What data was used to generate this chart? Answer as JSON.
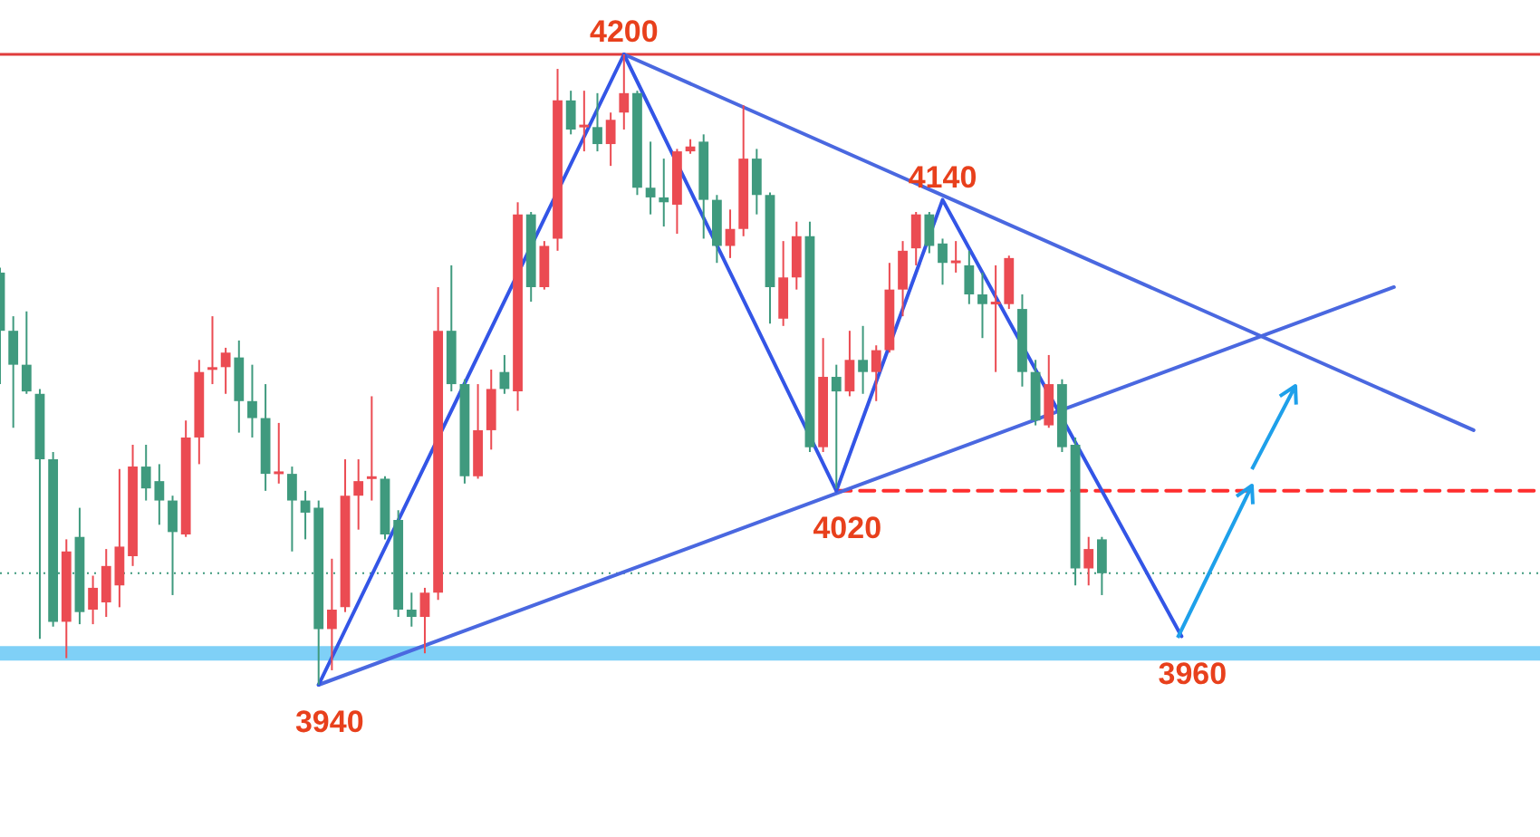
{
  "chart_data": {
    "type": "candlestick",
    "tick_labels": false,
    "categories": [
      null,
      null,
      null,
      null,
      null,
      null,
      null,
      null,
      null,
      null,
      null,
      null,
      null,
      null,
      null,
      null,
      null,
      null,
      null,
      null,
      null,
      null,
      null,
      null,
      null,
      null,
      null,
      null,
      null,
      null,
      null,
      null,
      null,
      null,
      null,
      null,
      null,
      null,
      null,
      null,
      null,
      null,
      null,
      null,
      null,
      null,
      null,
      null,
      null,
      null,
      null,
      null,
      null,
      null,
      null,
      null,
      null,
      null,
      null,
      null,
      null,
      null,
      null,
      null,
      null,
      null,
      null,
      null,
      null,
      null,
      null,
      null,
      null,
      null,
      null,
      null,
      null,
      null,
      null,
      null,
      null,
      null,
      null,
      null,
      null,
      null,
      null,
      null,
      null,
      null,
      null,
      null,
      null,
      null,
      null,
      null,
      null,
      null,
      null,
      null,
      null,
      null,
      null,
      null,
      null,
      null,
      null,
      null,
      null,
      null,
      null,
      null,
      null,
      null,
      null,
      null,
      null
    ],
    "ohlc": [
      [
        4110,
        4112,
        4064,
        4086
      ],
      [
        4086,
        4092,
        4046,
        4072
      ],
      [
        4072,
        4094,
        4060,
        4061
      ],
      [
        4060,
        4062,
        3959,
        4033
      ],
      [
        4033,
        4036,
        3964,
        3966
      ],
      [
        3966,
        4000,
        3951,
        3995
      ],
      [
        4001,
        4013,
        3965,
        3970
      ],
      [
        3971,
        3985,
        3965,
        3980
      ],
      [
        3974,
        3996,
        3968,
        3989
      ],
      [
        3981,
        4029,
        3972,
        3997
      ],
      [
        3993,
        4039,
        3989,
        4030
      ],
      [
        4030,
        4039,
        4016,
        4021
      ],
      [
        4024,
        4031,
        4006,
        4016
      ],
      [
        4016,
        4018,
        3977,
        4003
      ],
      [
        4002,
        4049,
        4001,
        4042
      ],
      [
        4042,
        4074,
        4031,
        4069
      ],
      [
        4070,
        4092,
        4064,
        4071
      ],
      [
        4071,
        4079,
        4060,
        4077
      ],
      [
        4075,
        4082,
        4044,
        4057
      ],
      [
        4057,
        4072,
        4042,
        4050
      ],
      [
        4050,
        4064,
        4020,
        4027
      ],
      [
        4027,
        4048,
        4023,
        4028
      ],
      [
        4027,
        4030,
        3995,
        4016
      ],
      [
        4016,
        4020,
        4000,
        4011
      ],
      [
        4013,
        4016,
        3940,
        3963
      ],
      [
        3963,
        3992,
        3946,
        3971
      ],
      [
        3972,
        4033,
        3970,
        4018
      ],
      [
        4018,
        4033,
        4004,
        4024
      ],
      [
        4025,
        4059,
        4016,
        4026
      ],
      [
        4025,
        4026,
        4000,
        4002
      ],
      [
        4008,
        4012,
        3968,
        3971
      ],
      [
        3971,
        3978,
        3964,
        3968
      ],
      [
        3968,
        3980,
        3953,
        3978
      ],
      [
        3978,
        4104,
        3975,
        4086
      ],
      [
        4086,
        4113,
        4061,
        4064
      ],
      [
        4064,
        4066,
        4023,
        4026
      ],
      [
        4026,
        4064,
        4025,
        4045
      ],
      [
        4045,
        4070,
        4037,
        4062
      ],
      [
        4069,
        4076,
        4060,
        4062
      ],
      [
        4061,
        4139,
        4053,
        4134
      ],
      [
        4134,
        4135,
        4098,
        4104
      ],
      [
        4104,
        4123,
        4103,
        4121
      ],
      [
        4124,
        4194,
        4119,
        4181
      ],
      [
        4181,
        4185,
        4167,
        4169
      ],
      [
        4170,
        4185,
        4160,
        4171
      ],
      [
        4170,
        4184,
        4160,
        4163
      ],
      [
        4163,
        4176,
        4154,
        4173
      ],
      [
        4176,
        4200,
        4169,
        4184
      ],
      [
        4184,
        4185,
        4142,
        4145
      ],
      [
        4145,
        4164,
        4134,
        4141
      ],
      [
        4141,
        4157,
        4129,
        4139
      ],
      [
        4138,
        4161,
        4126,
        4160
      ],
      [
        4160,
        4165,
        4159,
        4162
      ],
      [
        4164,
        4167,
        4124,
        4140
      ],
      [
        4140,
        4142,
        4114,
        4121
      ],
      [
        4121,
        4136,
        4116,
        4128
      ],
      [
        4128,
        4179,
        4125,
        4157
      ],
      [
        4157,
        4161,
        4134,
        4142
      ],
      [
        4142,
        4143,
        4089,
        4104
      ],
      [
        4091,
        4123,
        4088,
        4108
      ],
      [
        4108,
        4131,
        4103,
        4125
      ],
      [
        4125,
        4131,
        4036,
        4038
      ],
      [
        4038,
        4083,
        4036,
        4067
      ],
      [
        4067,
        4072,
        4021,
        4061
      ],
      [
        4061,
        4086,
        4059,
        4074
      ],
      [
        4074,
        4088,
        4060,
        4069
      ],
      [
        4069,
        4080,
        4057,
        4078
      ],
      [
        4078,
        4114,
        4077,
        4103
      ],
      [
        4103,
        4123,
        4092,
        4119
      ],
      [
        4120,
        4135,
        4113,
        4134
      ],
      [
        4134,
        4135,
        4118,
        4121
      ],
      [
        4122,
        4124,
        4105,
        4114
      ],
      [
        4114,
        4123,
        4110,
        4115
      ],
      [
        4113,
        4119,
        4097,
        4101
      ],
      [
        4101,
        4110,
        4083,
        4097
      ],
      [
        4097,
        4113,
        4069,
        4098
      ],
      [
        4097,
        4117,
        4095,
        4116
      ],
      [
        4095,
        4101,
        4063,
        4069
      ],
      [
        4069,
        4074,
        4047,
        4049
      ],
      [
        4047,
        4076,
        4046,
        4064
      ],
      [
        4064,
        4066,
        4036,
        4038
      ],
      [
        4039,
        4042,
        3981,
        3988
      ],
      [
        3988,
        4001,
        3981,
        3996
      ],
      [
        4000,
        4001,
        3977,
        3986
      ],
      null,
      null,
      null,
      null,
      null,
      null,
      null,
      null,
      null,
      null,
      null,
      null,
      null,
      null,
      null,
      null,
      null,
      null,
      null,
      null,
      null,
      null,
      null,
      null,
      null,
      null,
      null,
      null,
      null,
      null,
      null,
      null,
      null
    ],
    "colors": [
      "#3f9a7e",
      "#3f9a7e",
      "#3f9a7e",
      "#3f9a7e",
      "#3f9a7e",
      "#eb4b52",
      "#3f9a7e",
      "#eb4b52",
      "#eb4b52",
      "#eb4b52",
      "#eb4b52",
      "#3f9a7e",
      "#3f9a7e",
      "#3f9a7e",
      "#eb4b52",
      "#eb4b52",
      "#eb4b52",
      "#eb4b52",
      "#3f9a7e",
      "#3f9a7e",
      "#3f9a7e",
      "#eb4b52",
      "#3f9a7e",
      "#3f9a7e",
      "#3f9a7e",
      "#eb4b52",
      "#eb4b52",
      "#eb4b52",
      "#eb4b52",
      "#3f9a7e",
      "#3f9a7e",
      "#3f9a7e",
      "#eb4b52",
      "#eb4b52",
      "#3f9a7e",
      "#3f9a7e",
      "#eb4b52",
      "#eb4b52",
      "#3f9a7e",
      "#eb4b52",
      "#3f9a7e",
      "#eb4b52",
      "#eb4b52",
      "#3f9a7e",
      "#eb4b52",
      "#3f9a7e",
      "#eb4b52",
      "#eb4b52",
      "#3f9a7e",
      "#3f9a7e",
      "#3f9a7e",
      "#eb4b52",
      "#eb4b52",
      "#3f9a7e",
      "#3f9a7e",
      "#eb4b52",
      "#eb4b52",
      "#3f9a7e",
      "#3f9a7e",
      "#eb4b52",
      "#eb4b52",
      "#3f9a7e",
      "#eb4b52",
      "#3f9a7e",
      "#eb4b52",
      "#3f9a7e",
      "#eb4b52",
      "#eb4b52",
      "#eb4b52",
      "#eb4b52",
      "#3f9a7e",
      "#3f9a7e",
      "#eb4b52",
      "#3f9a7e",
      "#3f9a7e",
      "#eb4b52",
      "#eb4b52",
      "#3f9a7e",
      "#3f9a7e",
      "#eb4b52",
      "#3f9a7e",
      "#3f9a7e",
      "#eb4b52",
      "#3f9a7e",
      null,
      null,
      null,
      null,
      null,
      null,
      null,
      null,
      null,
      null,
      null,
      null,
      null,
      null,
      null,
      null,
      null,
      null,
      null,
      null,
      null,
      null,
      null,
      null,
      null,
      null,
      null,
      null,
      null,
      null,
      null,
      null,
      null
    ],
    "series": [
      {
        "type": "line",
        "color": "#3355e6",
        "values": [
          null,
          null,
          null,
          null,
          null,
          null,
          null,
          null,
          null,
          null,
          null,
          null,
          null,
          null,
          null,
          null,
          null,
          null,
          null,
          null,
          null,
          null,
          null,
          null,
          3940,
          null,
          null,
          null,
          null,
          null,
          null,
          null,
          null,
          null,
          null,
          null,
          null,
          null,
          null,
          null,
          null,
          null,
          null,
          null,
          null,
          null,
          null,
          4200,
          null,
          null,
          null,
          null,
          null,
          null,
          null,
          null,
          null,
          null,
          null,
          null,
          null,
          null,
          null,
          4020,
          null,
          null,
          null,
          null,
          null,
          null,
          null,
          4140,
          null,
          null,
          null,
          null,
          null,
          null,
          null,
          null,
          null,
          null,
          null,
          null,
          null,
          null,
          null,
          null,
          null,
          3960,
          null,
          null,
          null,
          null,
          null,
          null,
          null,
          null,
          null,
          null,
          null,
          null,
          null,
          null,
          null,
          null,
          null,
          null,
          null,
          null,
          null,
          null,
          null,
          null,
          null,
          null,
          null
        ],
        "value_labels": [
          null,
          null,
          null,
          null,
          null,
          null,
          null,
          null,
          null,
          null,
          null,
          null,
          null,
          null,
          null,
          null,
          null,
          null,
          null,
          null,
          null,
          null,
          null,
          null,
          "3940",
          null,
          null,
          null,
          null,
          null,
          null,
          null,
          null,
          null,
          null,
          null,
          null,
          null,
          null,
          null,
          null,
          null,
          null,
          null,
          null,
          null,
          null,
          "4200",
          null,
          null,
          null,
          null,
          null,
          null,
          null,
          null,
          null,
          null,
          null,
          null,
          null,
          null,
          null,
          "4020",
          null,
          null,
          null,
          null,
          null,
          null,
          null,
          "4140",
          null,
          null,
          null,
          null,
          null,
          null,
          null,
          null,
          null,
          null,
          null,
          null,
          null,
          null,
          null,
          null,
          null,
          "3960",
          null,
          null,
          null,
          null,
          null,
          null,
          null,
          null,
          null,
          null,
          null,
          null,
          null,
          null,
          null,
          null,
          null,
          null,
          null,
          null,
          null,
          null,
          null,
          null,
          null,
          null,
          null
        ]
      },
      {
        "type": "line",
        "color": "#4a68e0",
        "values": [
          null,
          null,
          null,
          null,
          null,
          null,
          null,
          null,
          null,
          null,
          null,
          null,
          null,
          null,
          null,
          null,
          null,
          null,
          null,
          null,
          null,
          null,
          null,
          null,
          null,
          null,
          null,
          null,
          null,
          null,
          null,
          null,
          null,
          null,
          null,
          null,
          null,
          null,
          null,
          null,
          null,
          null,
          null,
          null,
          null,
          null,
          null,
          4200,
          null,
          null,
          null,
          null,
          null,
          null,
          null,
          null,
          null,
          null,
          null,
          null,
          null,
          null,
          null,
          null,
          null,
          null,
          null,
          null,
          null,
          null,
          null,
          null,
          null,
          null,
          null,
          null,
          null,
          null,
          null,
          null,
          null,
          null,
          null,
          null,
          null,
          null,
          null,
          null,
          null,
          null,
          null,
          null,
          null,
          null,
          null,
          null,
          null,
          null,
          null,
          null,
          null,
          null,
          null,
          null,
          null,
          null,
          null,
          null,
          null,
          null,
          null,
          4045,
          null,
          null,
          null,
          null,
          null
        ]
      },
      {
        "type": "line",
        "color": "#4a68e0",
        "values": [
          null,
          null,
          null,
          null,
          null,
          null,
          null,
          null,
          null,
          null,
          null,
          null,
          null,
          null,
          null,
          null,
          null,
          null,
          null,
          null,
          null,
          null,
          null,
          null,
          3940,
          null,
          null,
          null,
          null,
          null,
          null,
          null,
          null,
          null,
          null,
          null,
          null,
          null,
          null,
          null,
          null,
          null,
          null,
          null,
          null,
          null,
          null,
          null,
          null,
          null,
          null,
          null,
          null,
          null,
          null,
          null,
          null,
          null,
          null,
          null,
          null,
          null,
          null,
          null,
          null,
          null,
          null,
          null,
          null,
          null,
          null,
          null,
          null,
          null,
          null,
          null,
          null,
          null,
          null,
          null,
          null,
          null,
          null,
          null,
          null,
          null,
          null,
          null,
          null,
          null,
          null,
          null,
          null,
          null,
          null,
          null,
          null,
          null,
          null,
          null,
          null,
          null,
          null,
          null,
          null,
          4104,
          null,
          null,
          null,
          null,
          null,
          null,
          null,
          null,
          null,
          null,
          null
        ]
      },
      {
        "type": "line",
        "color": "#ff2e2e",
        "line_style": "dashed",
        "values": [
          null,
          null,
          null,
          null,
          null,
          null,
          null,
          null,
          null,
          null,
          null,
          null,
          null,
          null,
          null,
          null,
          null,
          null,
          null,
          null,
          null,
          null,
          null,
          null,
          null,
          null,
          null,
          null,
          null,
          null,
          null,
          null,
          null,
          null,
          null,
          null,
          null,
          null,
          null,
          null,
          null,
          null,
          null,
          null,
          null,
          null,
          null,
          null,
          null,
          null,
          null,
          null,
          null,
          null,
          null,
          null,
          null,
          null,
          null,
          null,
          null,
          null,
          null,
          4020,
          null,
          null,
          null,
          null,
          null,
          null,
          null,
          null,
          null,
          null,
          null,
          null,
          null,
          null,
          null,
          null,
          null,
          null,
          null,
          null,
          null,
          null,
          null,
          null,
          null,
          null,
          null,
          null,
          null,
          null,
          null,
          null,
          null,
          null,
          null,
          null,
          null,
          null,
          null,
          null,
          null,
          null,
          null,
          null,
          null,
          null,
          null,
          null,
          null,
          null,
          null,
          null,
          4020
        ]
      }
    ],
    "ref_lines": [
      {
        "axis": "y",
        "value": 4200,
        "color": "#e03c3c"
      },
      {
        "axis": "y",
        "value": 3986,
        "color": "#3f9a7e",
        "line_style": "dotted"
      }
    ],
    "bands": [
      {
        "axis": "y",
        "from": 3950,
        "to": 3956,
        "color": "#7fd0f7"
      }
    ]
  }
}
